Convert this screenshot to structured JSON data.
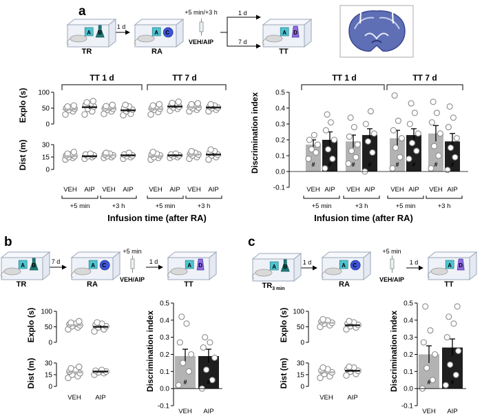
{
  "colors": {
    "veh": "#b3b3b3",
    "aip": "#1f1f1f",
    "cage_fill": "#eef2f8",
    "cage_line": "#9aa6b8",
    "object_a": "#4fc3d0",
    "object_b": "#1f7a7a",
    "object_c": "#3f55d6",
    "object_d": "#8c6be0",
    "brain": "#5868b0",
    "point_edge": "#8a8a8a"
  },
  "panel_a": {
    "label": "a",
    "protocol": {
      "boxes": [
        "TR",
        "RA",
        "TT"
      ],
      "object_letters": [
        "A",
        "B",
        "C",
        "D"
      ],
      "delay_1": "1 d",
      "infusion_time": "+5 min/+3 h",
      "infusion_label": "VEH/AIP",
      "delay_short": "1 d",
      "delay_long": "7 d"
    },
    "left_groups": [
      "TT 1 d",
      "TT 7 d"
    ],
    "right_groups": [
      "TT 1 d",
      "TT 7 d"
    ],
    "x_groups": [
      "VEH",
      "AIP"
    ],
    "timings": [
      "+5 min",
      "+3 h",
      "+5 min",
      "+3 h"
    ],
    "x_title_left": "Infusion time (after RA)",
    "x_title_right": "Infusion time (after RA)",
    "explo_title": "Explo (s)",
    "dist_title": "Dist (m)",
    "di_title": "Discrimination index",
    "explo_ticks": [
      "0",
      "50",
      "100"
    ],
    "dist_ticks": [
      "0",
      "15",
      "30"
    ],
    "di_ticks": [
      "-0.1",
      "0.0",
      "0.1",
      "0.2",
      "0.3",
      "0.4",
      "0.5"
    ],
    "hash": "#"
  },
  "panel_b": {
    "label": "b",
    "protocol": {
      "boxes": [
        "TR",
        "RA",
        "TT"
      ],
      "delay_1": "7 d",
      "infusion_time": "+5 min",
      "infusion_label": "VEH/AIP",
      "delay_2": "1 d"
    },
    "x_groups": [
      "VEH",
      "AIP"
    ],
    "explo_title": "Explo (s)",
    "dist_title": "Dist (m)",
    "di_title": "Discrimination index",
    "hash": "#"
  },
  "panel_c": {
    "label": "c",
    "protocol": {
      "box1_main": "TR",
      "box1_sub": "3 min",
      "boxes": [
        "RA",
        "TT"
      ],
      "delay_1": "1 d",
      "infusion_time": "+5 min",
      "infusion_label": "VEH/AIP",
      "delay_2": "1 d"
    },
    "x_groups": [
      "VEH",
      "AIP"
    ],
    "explo_title": "Explo (s)",
    "dist_title": "Dist (m)",
    "di_title": "Discrimination index",
    "hash": "#"
  },
  "chart_data": [
    {
      "type": "scatter",
      "title": "Explo (s) - panel a",
      "ylabel": "Explo (s)",
      "ylim": [
        0,
        100
      ],
      "conditions": [
        "TT 1 d +5 min",
        "TT 1 d +3 h",
        "TT 7 d +5 min",
        "TT 7 d +3 h"
      ],
      "series": [
        {
          "name": "VEH",
          "means": [
            46,
            48,
            47,
            53
          ],
          "sem": [
            4,
            4,
            4,
            4
          ],
          "points": [
            [
              30,
              40,
              44,
              48,
              50,
              52,
              55,
              58
            ],
            [
              32,
              40,
              45,
              48,
              50,
              52,
              56,
              60
            ],
            [
              30,
              38,
              45,
              48,
              50,
              55,
              58,
              62
            ],
            [
              40,
              45,
              50,
              52,
              55,
              58,
              62,
              65
            ]
          ]
        },
        {
          "name": "AIP",
          "means": [
            53,
            43,
            55,
            52
          ],
          "sem": [
            6,
            6,
            5,
            4
          ],
          "points": [
            [
              30,
              40,
              48,
              55,
              60,
              62,
              68,
              72
            ],
            [
              28,
              32,
              40,
              45,
              50,
              55,
              60
            ],
            [
              42,
              48,
              52,
              55,
              58,
              62,
              66,
              70
            ],
            [
              40,
              45,
              50,
              52,
              55,
              58,
              62
            ]
          ]
        }
      ]
    },
    {
      "type": "scatter",
      "title": "Dist (m) - panel a",
      "ylabel": "Dist (m)",
      "ylim": [
        0,
        30
      ],
      "conditions": [
        "TT 1 d +5 min",
        "TT 1 d +3 h",
        "TT 7 d +5 min",
        "TT 7 d +3 h"
      ],
      "series": [
        {
          "name": "VEH",
          "means": [
            16,
            17,
            16,
            18
          ],
          "sem": [
            1.5,
            1.2,
            1.5,
            1.5
          ],
          "points": [
            [
              12,
              14,
              15,
              16,
              17,
              18,
              19,
              21
            ],
            [
              14,
              15,
              16,
              17,
              18,
              19,
              20
            ],
            [
              12,
              14,
              15,
              17,
              18,
              19,
              21
            ],
            [
              13,
              15,
              17,
              18,
              19,
              20,
              22
            ]
          ]
        },
        {
          "name": "AIP",
          "means": [
            16,
            17,
            17,
            18
          ],
          "sem": [
            1,
            1.5,
            1.5,
            2
          ],
          "points": [
            [
              13,
              15,
              16,
              17,
              18,
              19
            ],
            [
              13,
              15,
              16,
              17,
              18,
              20
            ],
            [
              14,
              15,
              16,
              17,
              18,
              19
            ],
            [
              12,
              15,
              17,
              18,
              20,
              22,
              24
            ]
          ]
        }
      ]
    },
    {
      "type": "bar",
      "title": "Discrimination index - panel a",
      "ylabel": "Discrimination index",
      "xlabel": "Infusion time (after RA)",
      "ylim": [
        -0.1,
        0.5
      ],
      "categories": [
        "TT 1 d +5 min",
        "TT 1 d +3 h",
        "TT 7 d +5 min",
        "TT 7 d +3 h"
      ],
      "series": [
        {
          "name": "VEH",
          "values": [
            0.17,
            0.19,
            0.21,
            0.24
          ],
          "sem": [
            0.03,
            0.04,
            0.05,
            0.05
          ],
          "points": [
            [
              0.08,
              0.12,
              0.14,
              0.17,
              0.2,
              0.23
            ],
            [
              0.05,
              0.09,
              0.13,
              0.17,
              0.22,
              0.28,
              0.34
            ],
            [
              0.02,
              0.09,
              0.15,
              0.21,
              0.26,
              0.32,
              0.48
            ],
            [
              0.02,
              0.1,
              0.16,
              0.24,
              0.31,
              0.37,
              0.44
            ]
          ]
        },
        {
          "name": "AIP",
          "values": [
            0.2,
            0.23,
            0.23,
            0.19
          ],
          "sem": [
            0.05,
            0.04,
            0.04,
            0.05
          ],
          "points": [
            [
              0.02,
              0.08,
              0.14,
              0.2,
              0.26,
              0.31,
              0.36
            ],
            [
              0,
              0.12,
              0.19,
              0.24,
              0.3,
              0.38
            ],
            [
              0.08,
              0.13,
              0.18,
              0.24,
              0.3,
              0.37,
              0.43
            ],
            [
              0.01,
              0.09,
              0.15,
              0.21,
              0.28,
              0.34,
              0.41
            ]
          ]
        }
      ],
      "hash_marks": true
    },
    {
      "type": "scatter",
      "title": "Explo (s) - panel b",
      "ylim": [
        0,
        100
      ],
      "series": [
        {
          "name": "VEH",
          "mean": 55,
          "sem": 4,
          "points": [
            42,
            48,
            52,
            55,
            58,
            60,
            63,
            68
          ]
        },
        {
          "name": "AIP",
          "mean": 50,
          "sem": 5,
          "points": [
            35,
            42,
            48,
            52,
            56,
            60,
            64
          ]
        }
      ]
    },
    {
      "type": "scatter",
      "title": "Dist (m) - panel b",
      "ylim": [
        0,
        30
      ],
      "series": [
        {
          "name": "VEH",
          "mean": 18,
          "sem": 1.5,
          "points": [
            11,
            13,
            15,
            17,
            19,
            21,
            23,
            25
          ]
        },
        {
          "name": "AIP",
          "mean": 19,
          "sem": 1,
          "points": [
            15,
            17,
            18,
            19,
            20,
            21
          ]
        }
      ]
    },
    {
      "type": "bar",
      "title": "Discrimination index - panel b",
      "ylim": [
        -0.1,
        0.5
      ],
      "categories": [
        "VEH",
        "AIP"
      ],
      "values": [
        0.19,
        0.19
      ],
      "sem": [
        0.04,
        0.04
      ],
      "points": [
        [
          0.02,
          0.1,
          0.15,
          0.2,
          0.27,
          0.38,
          0.42
        ],
        [
          0.0,
          0.05,
          0.11,
          0.18,
          0.24,
          0.27,
          0.3
        ]
      ],
      "hash_marks": true
    },
    {
      "type": "scatter",
      "title": "Explo (s) - panel c",
      "ylim": [
        0,
        100
      ],
      "series": [
        {
          "name": "VEH",
          "mean": 63,
          "sem": 4,
          "points": [
            50,
            55,
            60,
            63,
            66,
            70,
            74
          ]
        },
        {
          "name": "AIP",
          "mean": 55,
          "sem": 4,
          "points": [
            42,
            48,
            52,
            56,
            60,
            64,
            68
          ]
        }
      ]
    },
    {
      "type": "scatter",
      "title": "Dist (m) - panel c",
      "ylim": [
        0,
        30
      ],
      "series": [
        {
          "name": "VEH",
          "mean": 18,
          "sem": 2,
          "points": [
            11,
            13,
            16,
            18,
            20,
            22,
            24
          ]
        },
        {
          "name": "AIP",
          "mean": 20,
          "sem": 1.5,
          "points": [
            14,
            16,
            19,
            20,
            22,
            24,
            25
          ]
        }
      ]
    },
    {
      "type": "bar",
      "title": "Discrimination index - panel c",
      "ylim": [
        -0.1,
        0.5
      ],
      "categories": [
        "VEH",
        "AIP"
      ],
      "values": [
        0.2,
        0.24
      ],
      "sem": [
        0.05,
        0.05
      ],
      "points": [
        [
          0.0,
          0.05,
          0.12,
          0.2,
          0.27,
          0.34,
          0.48
        ],
        [
          0.02,
          0.08,
          0.14,
          0.22,
          0.3,
          0.38,
          0.42,
          0.48
        ]
      ],
      "hash_marks": true
    }
  ]
}
